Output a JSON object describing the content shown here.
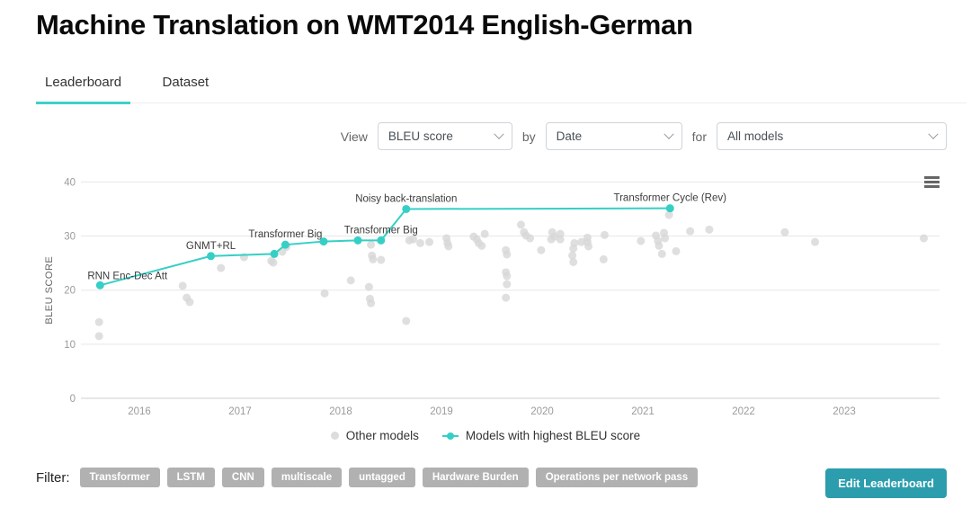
{
  "page": {
    "title": "Machine Translation on WMT2014 English-German"
  },
  "tabs": [
    {
      "label": "Leaderboard",
      "active": true
    },
    {
      "label": "Dataset",
      "active": false
    }
  ],
  "controls": {
    "view_label": "View",
    "by_label": "by",
    "for_label": "for",
    "metric_value": "BLEU score",
    "axis_value": "Date",
    "models_value": "All models"
  },
  "legend": [
    {
      "type": "other",
      "label": "Other models"
    },
    {
      "type": "highlight",
      "label": "Models with highest BLEU score"
    }
  ],
  "filter": {
    "label": "Filter:",
    "tags": [
      "Transformer",
      "LSTM",
      "CNN",
      "multiscale",
      "untagged",
      "Hardware Burden",
      "Operations per network pass"
    ]
  },
  "edit_button_label": "Edit Leaderboard",
  "colors": {
    "accent": "#36cfc5",
    "accent_dark": "#2b9dad",
    "other_dot": "#d7d7d7",
    "grid": "#e7e7e7",
    "zero_line": "#cfcfcf",
    "axis_text": "#9b9b9b",
    "annotation_text": "#3c3c3c"
  },
  "chart_data": {
    "type": "scatter",
    "title": "",
    "xlabel": "Date",
    "ylabel": "BLEU SCORE",
    "ylim": [
      0,
      40
    ],
    "yticks": [
      0,
      10,
      20,
      30,
      40
    ],
    "xticks": [
      2016,
      2017,
      2018,
      2019,
      2020,
      2021,
      2022,
      2023
    ],
    "grid": true,
    "legend_position": "bottom",
    "highlight_series": {
      "name": "Models with highest BLEU score",
      "points": [
        {
          "year": 2015.61,
          "bleu": 20.9,
          "label": "RNN Enc-Dec Att",
          "anchor": "start"
        },
        {
          "year": 2016.71,
          "bleu": 26.3,
          "label": "GNMT+RL",
          "anchor": "middle"
        },
        {
          "year": 2017.34,
          "bleu": 26.7,
          "label": "",
          "anchor": "middle"
        },
        {
          "year": 2017.45,
          "bleu": 28.4,
          "label": "Transformer Big",
          "anchor": "middle"
        },
        {
          "year": 2017.83,
          "bleu": 29.0,
          "label": "",
          "anchor": "middle"
        },
        {
          "year": 2018.17,
          "bleu": 29.2,
          "label": "",
          "anchor": "middle"
        },
        {
          "year": 2018.4,
          "bleu": 29.2,
          "label": "Transformer Big",
          "anchor": "middle"
        },
        {
          "year": 2018.65,
          "bleu": 35.0,
          "label": "Noisy back-translation",
          "anchor": "middle"
        },
        {
          "year": 2021.27,
          "bleu": 35.14,
          "label": "Transformer Cycle (Rev)",
          "anchor": "middle"
        }
      ]
    },
    "other_series": {
      "name": "Other models",
      "points": [
        [
          2015.6,
          14.1
        ],
        [
          2015.6,
          11.5
        ],
        [
          2016.43,
          20.8
        ],
        [
          2016.47,
          18.6
        ],
        [
          2016.5,
          17.8
        ],
        [
          2016.81,
          24.1
        ],
        [
          2017.04,
          26.1
        ],
        [
          2017.31,
          25.4
        ],
        [
          2017.33,
          25.1
        ],
        [
          2017.42,
          27.1
        ],
        [
          2017.46,
          28.0
        ],
        [
          2017.84,
          19.4
        ],
        [
          2018.1,
          21.8
        ],
        [
          2018.28,
          20.6
        ],
        [
          2018.29,
          18.4
        ],
        [
          2018.3,
          17.6
        ],
        [
          2018.3,
          28.4
        ],
        [
          2018.31,
          26.4
        ],
        [
          2018.32,
          25.7
        ],
        [
          2018.4,
          25.6
        ],
        [
          2018.65,
          14.3
        ],
        [
          2018.68,
          29.2
        ],
        [
          2018.72,
          29.4
        ],
        [
          2018.79,
          28.7
        ],
        [
          2018.88,
          28.9
        ],
        [
          2019.05,
          29.6
        ],
        [
          2019.06,
          28.7
        ],
        [
          2019.07,
          28.1
        ],
        [
          2019.32,
          29.9
        ],
        [
          2019.35,
          29.4
        ],
        [
          2019.37,
          28.7
        ],
        [
          2019.4,
          28.2
        ],
        [
          2019.43,
          30.4
        ],
        [
          2019.64,
          27.4
        ],
        [
          2019.65,
          26.6
        ],
        [
          2019.64,
          23.3
        ],
        [
          2019.65,
          22.6
        ],
        [
          2019.65,
          21.1
        ],
        [
          2019.64,
          18.6
        ],
        [
          2019.79,
          32.1
        ],
        [
          2019.82,
          30.7
        ],
        [
          2019.84,
          30.1
        ],
        [
          2019.88,
          29.6
        ],
        [
          2019.99,
          27.4
        ],
        [
          2020.09,
          29.4
        ],
        [
          2020.1,
          30.7
        ],
        [
          2020.12,
          29.9
        ],
        [
          2020.18,
          30.4
        ],
        [
          2020.18,
          29.4
        ],
        [
          2020.3,
          26.4
        ],
        [
          2020.31,
          27.7
        ],
        [
          2020.31,
          25.2
        ],
        [
          2020.32,
          28.7
        ],
        [
          2020.39,
          28.9
        ],
        [
          2020.45,
          29.7
        ],
        [
          2020.45,
          28.9
        ],
        [
          2020.46,
          28.1
        ],
        [
          2020.61,
          25.7
        ],
        [
          2020.62,
          30.2
        ],
        [
          2020.98,
          29.1
        ],
        [
          2021.13,
          30.1
        ],
        [
          2021.15,
          29.1
        ],
        [
          2021.16,
          28.2
        ],
        [
          2021.19,
          26.7
        ],
        [
          2021.21,
          30.6
        ],
        [
          2021.22,
          29.6
        ],
        [
          2021.26,
          33.9
        ],
        [
          2021.33,
          27.2
        ],
        [
          2021.47,
          30.9
        ],
        [
          2021.66,
          31.2
        ],
        [
          2022.41,
          30.7
        ],
        [
          2022.71,
          28.9
        ],
        [
          2023.79,
          29.6
        ]
      ]
    }
  }
}
